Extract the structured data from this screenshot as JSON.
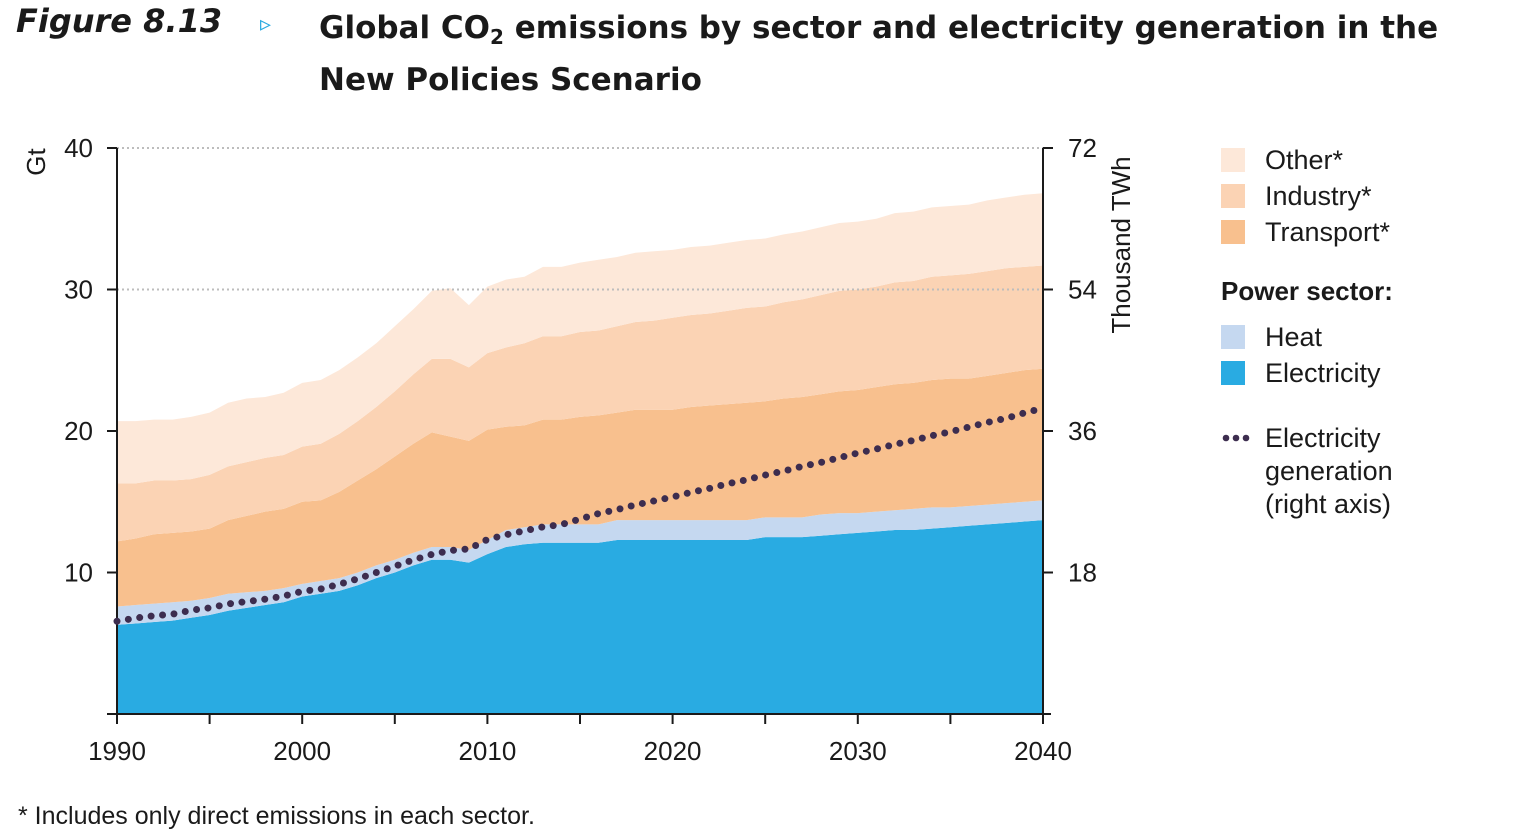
{
  "figure": {
    "label": "Figure 8.13",
    "arrow": "▹",
    "title_part1": "Global CO",
    "title_sub": "2",
    "title_part2": " emissions by sector and electricity generation in the New Policies Scenario"
  },
  "footnote": "* Includes only direct emissions in each sector.",
  "chart_data": {
    "type": "area",
    "title": "Global CO2 emissions by sector and electricity generation in the New Policies Scenario",
    "stacked": true,
    "x": [
      1990,
      1991,
      1992,
      1993,
      1994,
      1995,
      1996,
      1997,
      1998,
      1999,
      2000,
      2001,
      2002,
      2003,
      2004,
      2005,
      2006,
      2007,
      2008,
      2009,
      2010,
      2011,
      2012,
      2013,
      2014,
      2015,
      2016,
      2017,
      2018,
      2019,
      2020,
      2021,
      2022,
      2023,
      2024,
      2025,
      2026,
      2027,
      2028,
      2029,
      2030,
      2031,
      2032,
      2033,
      2034,
      2035,
      2036,
      2037,
      2038,
      2039,
      2040
    ],
    "x_ticks": [
      1990,
      2000,
      2010,
      2020,
      2030,
      2040
    ],
    "left_axis": {
      "label": "Gt",
      "ylim": [
        0,
        40
      ],
      "ticks": [
        10,
        20,
        30,
        40
      ]
    },
    "right_axis": {
      "label": "Thousand TWh",
      "ylim": [
        0,
        72
      ],
      "ticks": [
        18,
        36,
        54,
        72
      ]
    },
    "grid": {
      "horizontal_dotted_at": [
        30,
        40
      ]
    },
    "series": [
      {
        "name": "Electricity",
        "color": "#29abe2",
        "values": [
          6.3,
          6.4,
          6.5,
          6.6,
          6.8,
          7.0,
          7.3,
          7.5,
          7.7,
          7.9,
          8.3,
          8.5,
          8.7,
          9.1,
          9.6,
          10.0,
          10.5,
          10.9,
          10.9,
          10.7,
          11.3,
          11.8,
          12.0,
          12.1,
          12.1,
          12.1,
          12.1,
          12.3,
          12.3,
          12.3,
          12.3,
          12.3,
          12.3,
          12.3,
          12.3,
          12.5,
          12.5,
          12.5,
          12.6,
          12.7,
          12.8,
          12.9,
          13.0,
          13.0,
          13.1,
          13.2,
          13.3,
          13.4,
          13.5,
          13.6,
          13.7
        ]
      },
      {
        "name": "Heat",
        "color": "#c5d8f0",
        "values": [
          1.3,
          1.3,
          1.3,
          1.3,
          1.2,
          1.2,
          1.2,
          1.1,
          1.0,
          1.0,
          0.9,
          0.9,
          0.9,
          0.9,
          0.9,
          0.9,
          0.9,
          0.9,
          0.9,
          0.9,
          1.0,
          1.2,
          1.2,
          1.3,
          1.3,
          1.3,
          1.3,
          1.4,
          1.4,
          1.4,
          1.4,
          1.4,
          1.4,
          1.4,
          1.4,
          1.4,
          1.4,
          1.4,
          1.5,
          1.5,
          1.4,
          1.4,
          1.4,
          1.5,
          1.5,
          1.4,
          1.4,
          1.4,
          1.4,
          1.4,
          1.4
        ]
      },
      {
        "name": "Transport*",
        "color": "#f8c08e",
        "values": [
          4.6,
          4.7,
          4.9,
          4.9,
          4.9,
          4.9,
          5.2,
          5.4,
          5.6,
          5.6,
          5.8,
          5.7,
          6.1,
          6.5,
          6.8,
          7.3,
          7.7,
          8.1,
          7.8,
          7.7,
          7.8,
          7.3,
          7.2,
          7.4,
          7.4,
          7.6,
          7.7,
          7.6,
          7.8,
          7.8,
          7.8,
          8.0,
          8.1,
          8.2,
          8.3,
          8.2,
          8.4,
          8.5,
          8.5,
          8.6,
          8.7,
          8.8,
          8.9,
          8.9,
          9.0,
          9.1,
          9.0,
          9.1,
          9.2,
          9.3,
          9.3
        ]
      },
      {
        "name": "Industry*",
        "color": "#fbd3b4",
        "values": [
          4.1,
          3.9,
          3.8,
          3.7,
          3.7,
          3.8,
          3.8,
          3.8,
          3.8,
          3.8,
          3.9,
          4.0,
          4.1,
          4.2,
          4.4,
          4.6,
          4.9,
          5.2,
          5.5,
          5.2,
          5.4,
          5.6,
          5.8,
          5.9,
          5.9,
          6.0,
          6.0,
          6.1,
          6.2,
          6.3,
          6.5,
          6.5,
          6.5,
          6.6,
          6.7,
          6.7,
          6.8,
          6.9,
          7.0,
          7.1,
          7.1,
          7.1,
          7.2,
          7.2,
          7.3,
          7.3,
          7.4,
          7.4,
          7.4,
          7.3,
          7.3
        ]
      },
      {
        "name": "Other*",
        "color": "#fde8d9",
        "values": [
          4.4,
          4.4,
          4.3,
          4.3,
          4.4,
          4.4,
          4.5,
          4.5,
          4.3,
          4.4,
          4.5,
          4.5,
          4.5,
          4.5,
          4.5,
          4.6,
          4.6,
          4.8,
          5.0,
          4.4,
          4.7,
          4.8,
          4.7,
          4.9,
          4.9,
          4.9,
          5.0,
          4.9,
          4.9,
          4.9,
          4.8,
          4.8,
          4.8,
          4.8,
          4.8,
          4.8,
          4.8,
          4.8,
          4.8,
          4.8,
          4.8,
          4.8,
          4.9,
          4.9,
          4.9,
          4.9,
          4.9,
          5.0,
          5.0,
          5.1,
          5.1
        ]
      },
      {
        "name": "Electricity generation (right axis)",
        "axis": "right",
        "style": "dotted",
        "color": "#3d2d4f",
        "values": [
          11.8,
          12.2,
          12.5,
          12.7,
          13.2,
          13.5,
          14.0,
          14.3,
          14.6,
          15.0,
          15.6,
          15.9,
          16.5,
          17.2,
          18.0,
          18.8,
          19.6,
          20.3,
          20.8,
          21.0,
          22.2,
          22.8,
          23.3,
          23.8,
          24.1,
          24.8,
          25.5,
          26.0,
          26.6,
          27.1,
          27.6,
          28.2,
          28.7,
          29.3,
          29.8,
          30.4,
          30.9,
          31.5,
          32.0,
          32.6,
          33.2,
          33.7,
          34.3,
          34.8,
          35.4,
          35.9,
          36.5,
          37.1,
          37.6,
          38.3,
          38.9
        ]
      }
    ],
    "legend": {
      "placement": "right",
      "groups": [
        {
          "heading": "",
          "items": [
            "Other*",
            "Industry*",
            "Transport*"
          ]
        },
        {
          "heading": "Power sector:",
          "items": [
            "Heat",
            "Electricity"
          ]
        },
        {
          "heading": "",
          "items": [
            "Electricity generation (right axis)"
          ]
        }
      ],
      "gen_lines": [
        "Electricity",
        "generation",
        "(right axis)"
      ]
    }
  }
}
